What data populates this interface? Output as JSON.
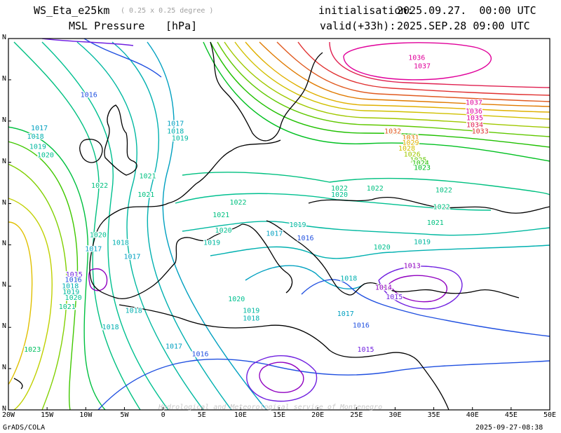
{
  "header": {
    "model": "WS_Eta_e25km",
    "resolution": "( 0.25 x 0.25 degree )",
    "field": "MSL Pressure",
    "unit": "[hPa]",
    "init_label": "initialisation:",
    "init_value": "2025.09.27.  00:00 UTC",
    "valid_label": "valid(+33h):",
    "valid_value": "2025.SEP.28 09:00 UTC"
  },
  "footer": {
    "left": "GrADS/COLA",
    "right": "2025-09-27-08:38",
    "watermark": "Hydrological and Meteorological service of Montenegro"
  },
  "axes": {
    "x_ticks": [
      "20W",
      "15W",
      "10W",
      "5W",
      "0",
      "5E",
      "10E",
      "15E",
      "20E",
      "25E",
      "30E",
      "35E",
      "40E",
      "45E",
      "50E"
    ],
    "y_ticks": [
      "N",
      "N",
      "N",
      "N",
      "N",
      "N",
      "N",
      "N",
      "N",
      "N"
    ]
  },
  "contour_labels": [
    {
      "text": "1036",
      "color": "#e0009a",
      "lon": 32.8,
      "lat": 70.5
    },
    {
      "text": "1037",
      "color": "#e0009a",
      "lon": 33.5,
      "lat": 69.4
    },
    {
      "text": "1037",
      "color": "#e0009a",
      "lon": 40.2,
      "lat": 64.7
    },
    {
      "text": "1036",
      "color": "#e0009a",
      "lon": 40.2,
      "lat": 63.6
    },
    {
      "text": "1035",
      "color": "#e0009a",
      "lon": 40.3,
      "lat": 62.7
    },
    {
      "text": "1034",
      "color": "#e02050",
      "lon": 40.3,
      "lat": 61.8
    },
    {
      "text": "1033",
      "color": "#e03030",
      "lon": 41.0,
      "lat": 61.0
    },
    {
      "text": "1032",
      "color": "#e05a20",
      "lon": 29.7,
      "lat": 61.0
    },
    {
      "text": "1031",
      "color": "#e07a00",
      "lon": 32.0,
      "lat": 60.2
    },
    {
      "text": "1029",
      "color": "#e0b000",
      "lon": 32.0,
      "lat": 59.5
    },
    {
      "text": "1028",
      "color": "#d0c000",
      "lon": 31.5,
      "lat": 58.8
    },
    {
      "text": "1026",
      "color": "#a0c800",
      "lon": 32.2,
      "lat": 58.0
    },
    {
      "text": "1025",
      "color": "#60c800",
      "lon": 33.0,
      "lat": 57.3
    },
    {
      "text": "1024",
      "color": "#20c000",
      "lon": 33.3,
      "lat": 56.9
    },
    {
      "text": "1023",
      "color": "#00c020",
      "lon": 33.5,
      "lat": 56.3
    },
    {
      "text": "1016",
      "color": "#2050e0",
      "lon": -9.6,
      "lat": 65.7
    },
    {
      "text": "1017",
      "color": "#00a0c0",
      "lon": 1.6,
      "lat": 62.0
    },
    {
      "text": "1018",
      "color": "#00b0b0",
      "lon": 1.6,
      "lat": 61.0
    },
    {
      "text": "1019",
      "color": "#00b8a0",
      "lon": 2.2,
      "lat": 60.1
    },
    {
      "text": "1017",
      "color": "#00a0c0",
      "lon": -16.0,
      "lat": 61.4
    },
    {
      "text": "1018",
      "color": "#00b0b0",
      "lon": -16.5,
      "lat": 60.3
    },
    {
      "text": "1019",
      "color": "#00b8a0",
      "lon": -16.2,
      "lat": 59.0
    },
    {
      "text": "1020",
      "color": "#00c090",
      "lon": -15.2,
      "lat": 57.9
    },
    {
      "text": "1021",
      "color": "#00c080",
      "lon": -2.0,
      "lat": 55.2
    },
    {
      "text": "1021",
      "color": "#00c080",
      "lon": -2.2,
      "lat": 52.8
    },
    {
      "text": "1022",
      "color": "#00c080",
      "lon": -8.2,
      "lat": 54.0
    },
    {
      "text": "1022",
      "color": "#00c080",
      "lon": 9.7,
      "lat": 51.8
    },
    {
      "text": "1021",
      "color": "#00c080",
      "lon": 7.5,
      "lat": 50.2
    },
    {
      "text": "1022",
      "color": "#00c080",
      "lon": 22.8,
      "lat": 53.6
    },
    {
      "text": "1020",
      "color": "#00c090",
      "lon": 22.8,
      "lat": 52.8
    },
    {
      "text": "1022",
      "color": "#00c080",
      "lon": 27.4,
      "lat": 53.6
    },
    {
      "text": "1022",
      "color": "#00c080",
      "lon": 36.3,
      "lat": 53.4
    },
    {
      "text": "1022",
      "color": "#00c080",
      "lon": 36.0,
      "lat": 51.2
    },
    {
      "text": "1021",
      "color": "#00c080",
      "lon": 35.2,
      "lat": 49.2
    },
    {
      "text": "1020",
      "color": "#00c090",
      "lon": 7.8,
      "lat": 48.2
    },
    {
      "text": "1019",
      "color": "#00b8a0",
      "lon": 17.4,
      "lat": 48.9
    },
    {
      "text": "1017",
      "color": "#00a0c0",
      "lon": 14.4,
      "lat": 47.8
    },
    {
      "text": "1016",
      "color": "#2050e0",
      "lon": 18.4,
      "lat": 47.2
    },
    {
      "text": "1019",
      "color": "#00b8a0",
      "lon": 6.3,
      "lat": 46.6
    },
    {
      "text": "1020",
      "color": "#00c090",
      "lon": -8.4,
      "lat": 47.6
    },
    {
      "text": "1018",
      "color": "#00b0b0",
      "lon": -5.5,
      "lat": 46.6
    },
    {
      "text": "1017",
      "color": "#00a0c0",
      "lon": -9.0,
      "lat": 45.8
    },
    {
      "text": "1017",
      "color": "#00a0c0",
      "lon": -4.0,
      "lat": 44.8
    },
    {
      "text": "1020",
      "color": "#00c090",
      "lon": 28.3,
      "lat": 46.0
    },
    {
      "text": "1019",
      "color": "#00b8a0",
      "lon": 33.5,
      "lat": 46.7
    },
    {
      "text": "1013",
      "color": "#9000c0",
      "lon": 32.2,
      "lat": 43.6
    },
    {
      "text": "1018",
      "color": "#00b0b0",
      "lon": 24.0,
      "lat": 42.0
    },
    {
      "text": "1014",
      "color": "#9000c0",
      "lon": 28.5,
      "lat": 40.8
    },
    {
      "text": "1015",
      "color": "#7020e0",
      "lon": -11.5,
      "lat": 42.5
    },
    {
      "text": "1016",
      "color": "#2050e0",
      "lon": -11.6,
      "lat": 41.8
    },
    {
      "text": "1018",
      "color": "#00b0b0",
      "lon": -12.0,
      "lat": 41.0
    },
    {
      "text": "1019",
      "color": "#00b8a0",
      "lon": -11.9,
      "lat": 40.2
    },
    {
      "text": "1020",
      "color": "#00c090",
      "lon": -11.6,
      "lat": 39.5
    },
    {
      "text": "1021",
      "color": "#00c080",
      "lon": -12.4,
      "lat": 38.3
    },
    {
      "text": "1018",
      "color": "#00b0b0",
      "lon": -3.8,
      "lat": 37.8
    },
    {
      "text": "1020",
      "color": "#00c090",
      "lon": 9.5,
      "lat": 39.3
    },
    {
      "text": "1019",
      "color": "#00b8a0",
      "lon": 11.4,
      "lat": 37.8
    },
    {
      "text": "1018",
      "color": "#00b0b0",
      "lon": 11.4,
      "lat": 36.8
    },
    {
      "text": "1017",
      "color": "#00a0c0",
      "lon": 23.6,
      "lat": 37.4
    },
    {
      "text": "1015",
      "color": "#7020e0",
      "lon": 29.9,
      "lat": 39.6
    },
    {
      "text": "1016",
      "color": "#2050e0",
      "lon": 25.6,
      "lat": 35.9
    },
    {
      "text": "1018",
      "color": "#00b0b0",
      "lon": -6.8,
      "lat": 35.7
    },
    {
      "text": "1017",
      "color": "#00a0c0",
      "lon": 1.4,
      "lat": 33.2
    },
    {
      "text": "1016",
      "color": "#2050e0",
      "lon": 4.8,
      "lat": 32.2
    },
    {
      "text": "1015",
      "color": "#7020e0",
      "lon": 26.2,
      "lat": 32.8
    },
    {
      "text": "1023",
      "color": "#00c060",
      "lon": -16.9,
      "lat": 32.8
    }
  ]
}
